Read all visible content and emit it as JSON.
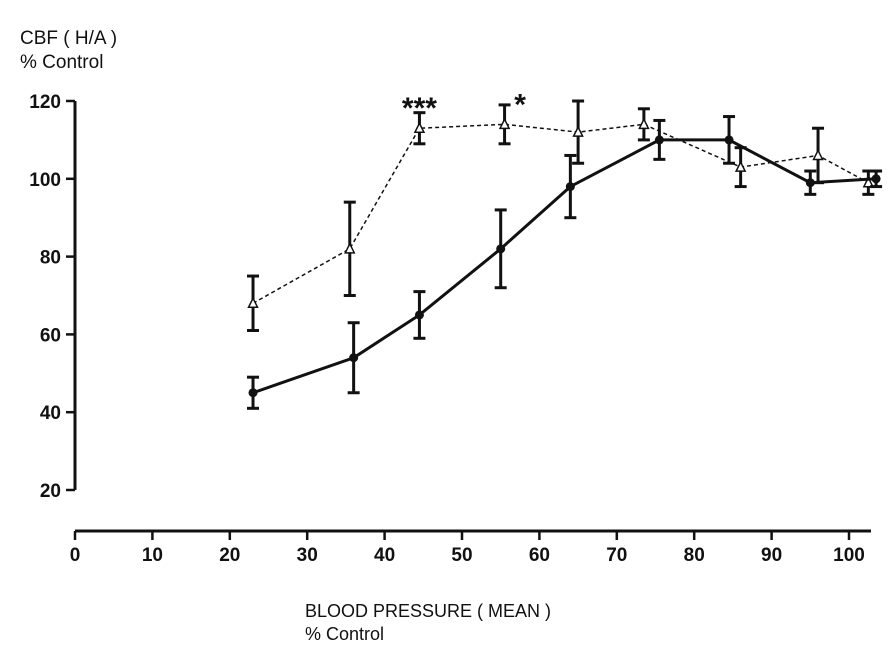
{
  "chart_data": {
    "type": "line",
    "ylabel_lines": [
      "CBF ( H/A )",
      "% Control"
    ],
    "xlabel_lines": [
      "BLOOD PRESSURE ( MEAN )",
      "% Control"
    ],
    "xlim": [
      0,
      100
    ],
    "ylim": [
      20,
      120
    ],
    "x_ticks": [
      0,
      10,
      20,
      30,
      40,
      50,
      60,
      70,
      80,
      90,
      100
    ],
    "y_ticks": [
      20,
      40,
      60,
      80,
      100,
      120
    ],
    "grid": false,
    "series": [
      {
        "style": "dashed",
        "marker": "open-triangle",
        "color": "#111111",
        "points": [
          {
            "x": 23,
            "y": 68,
            "err": 7
          },
          {
            "x": 35.5,
            "y": 82,
            "err": 12
          },
          {
            "x": 44.5,
            "y": 113,
            "err": 4
          },
          {
            "x": 55.5,
            "y": 114,
            "err": 5
          },
          {
            "x": 65,
            "y": 112,
            "err": 8
          },
          {
            "x": 73.5,
            "y": 114,
            "err": 4
          },
          {
            "x": 86,
            "y": 103,
            "err": 5
          },
          {
            "x": 96,
            "y": 106,
            "err": 7
          },
          {
            "x": 102.5,
            "y": 99,
            "err": 3
          }
        ]
      },
      {
        "style": "solid",
        "marker": "filled-circle",
        "color": "#111111",
        "points": [
          {
            "x": 23,
            "y": 45,
            "err": 4
          },
          {
            "x": 36,
            "y": 54,
            "err": 9
          },
          {
            "x": 44.5,
            "y": 65,
            "err": 6
          },
          {
            "x": 55,
            "y": 82,
            "err": 10
          },
          {
            "x": 64,
            "y": 98,
            "err": 8
          },
          {
            "x": 75.5,
            "y": 110,
            "err": 5
          },
          {
            "x": 84.5,
            "y": 110,
            "err": 6
          },
          {
            "x": 95,
            "y": 99,
            "err": 3
          },
          {
            "x": 103.5,
            "y": 100,
            "err": 2
          }
        ]
      }
    ],
    "annotations": [
      {
        "text": "***",
        "x": 44.5,
        "y": 113
      },
      {
        "text": "*",
        "x": 57.5,
        "y": 114
      }
    ]
  }
}
